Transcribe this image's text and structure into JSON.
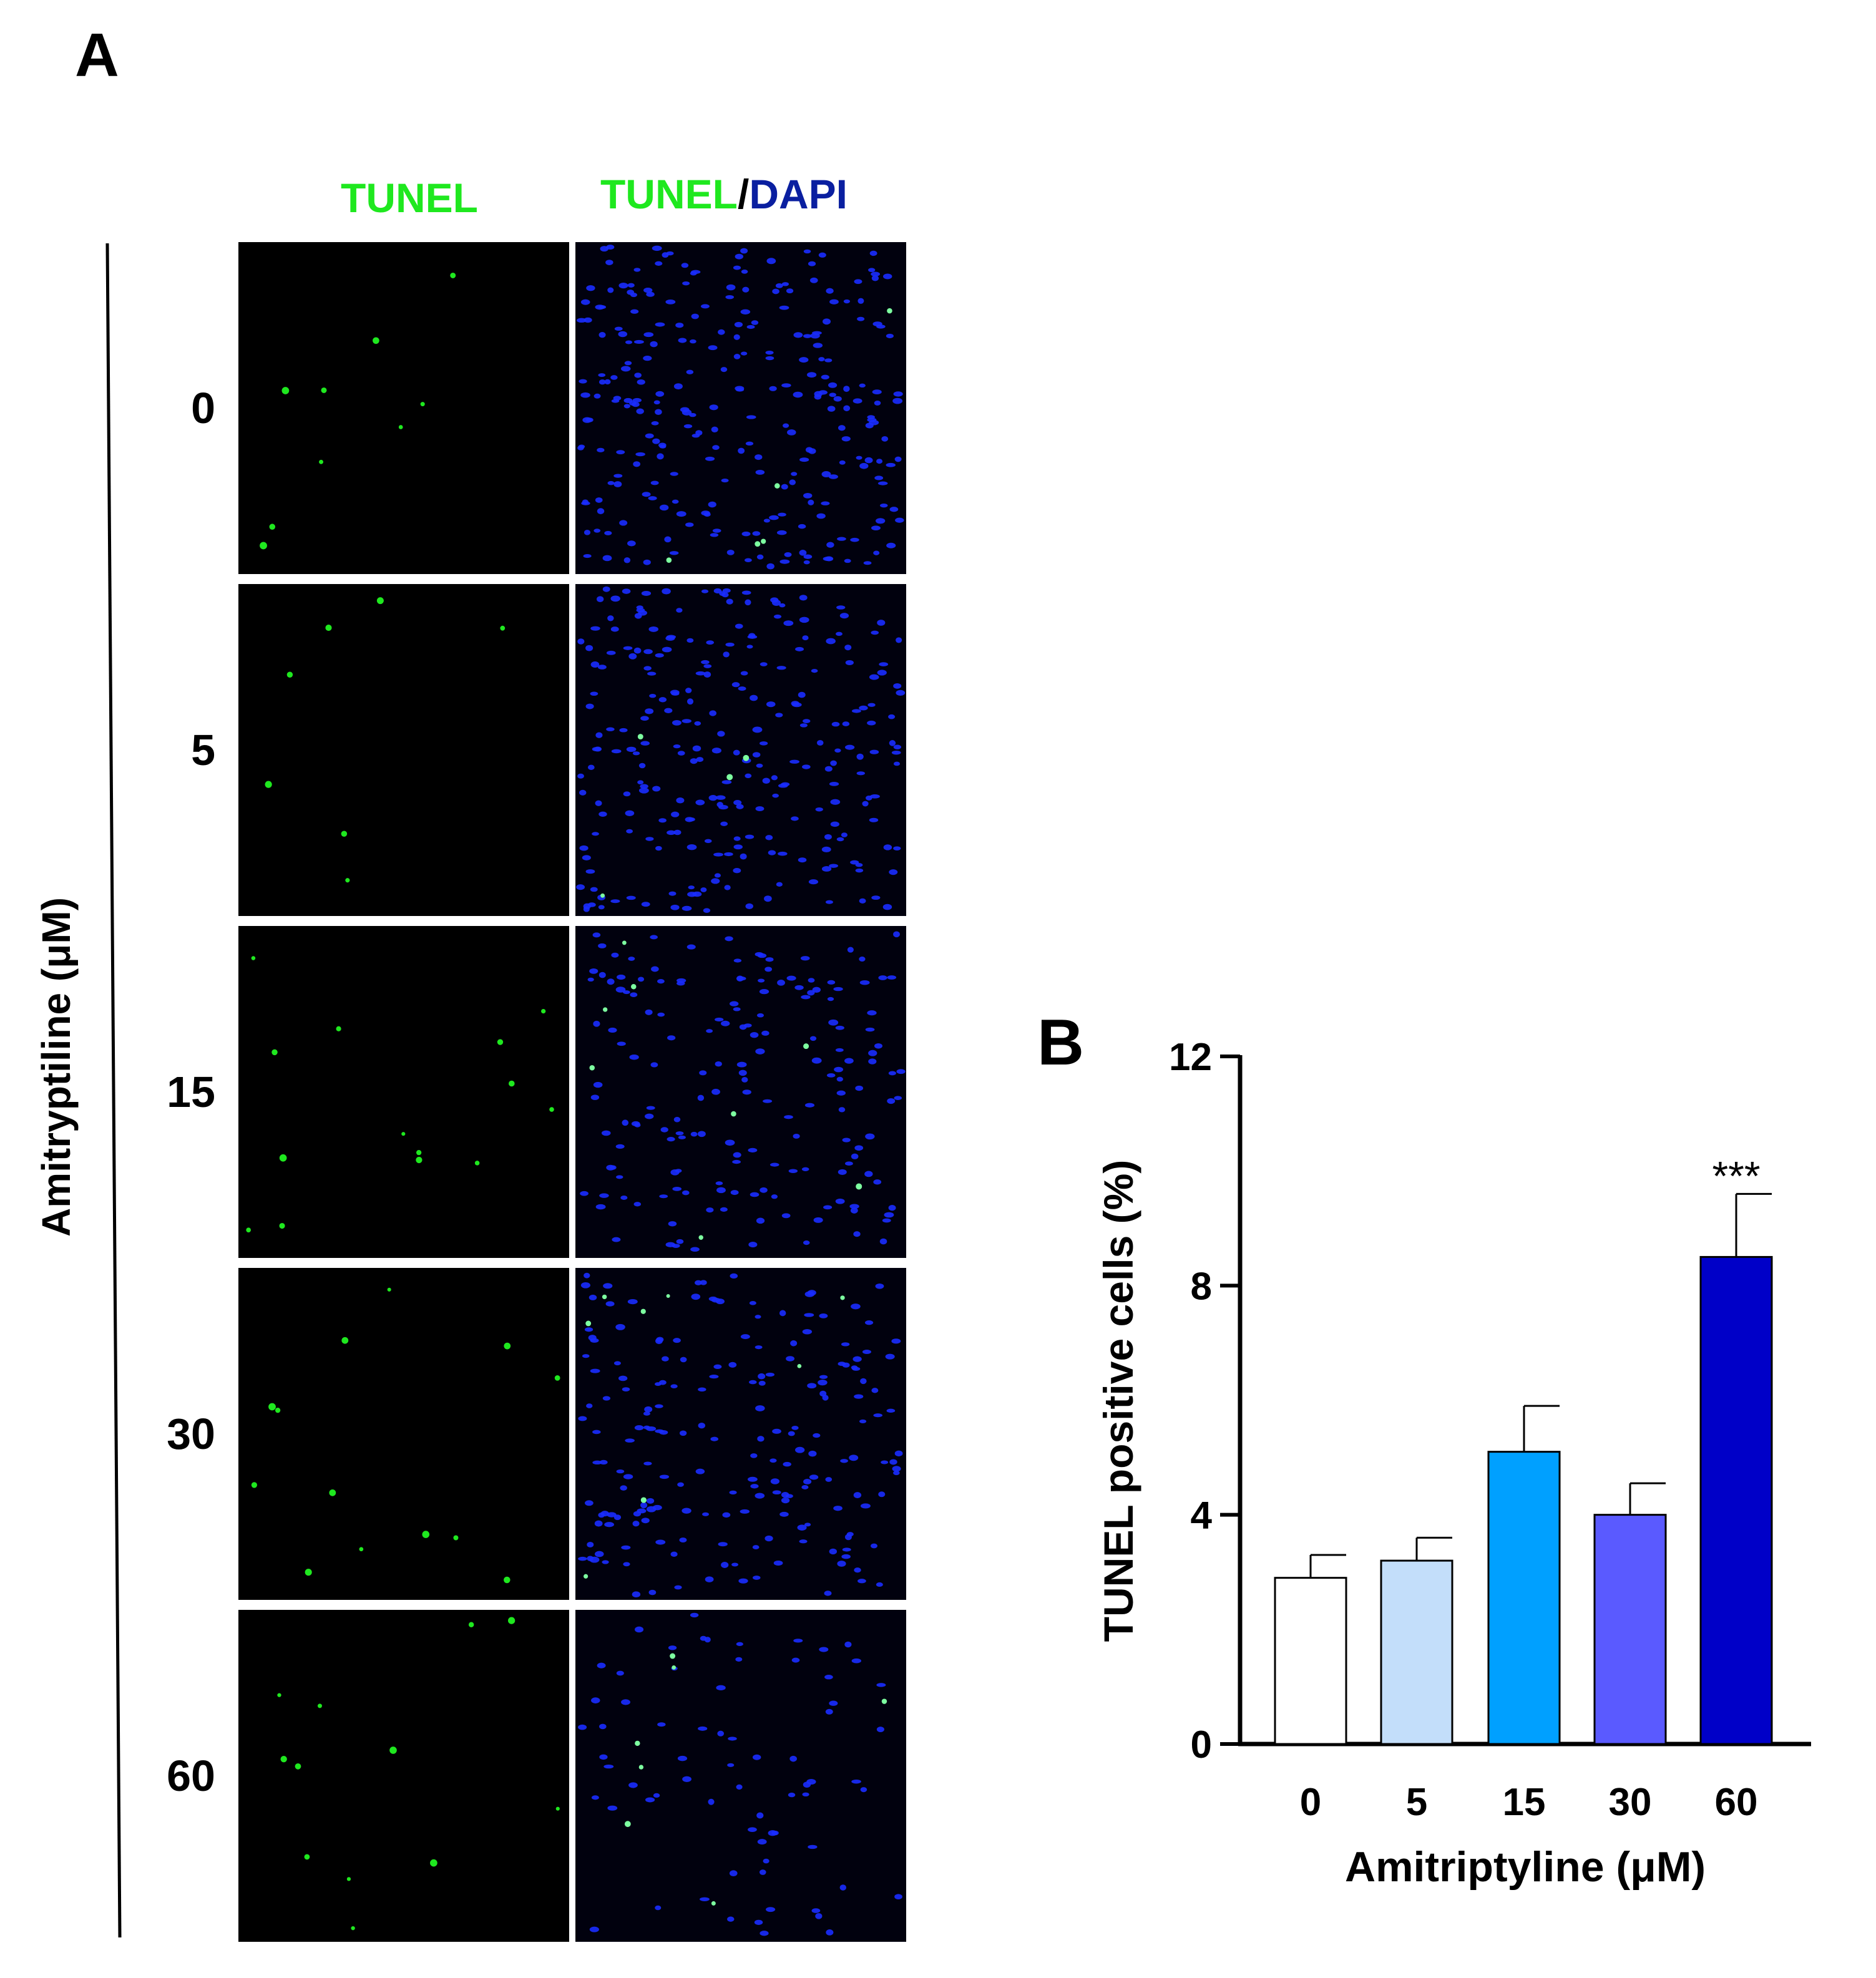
{
  "panel_a": {
    "label": "A",
    "col_headers": {
      "tunel": "TUNEL",
      "merge_green": "TUNEL",
      "merge_sep": "/",
      "merge_blue": "DAPI"
    },
    "side_label": "Amitryptiline (μM)",
    "rows": [
      "0",
      "5",
      "15",
      "30",
      "60"
    ],
    "colors": {
      "tunel": "#1fe81f",
      "dapi": "#0a1fa0",
      "nuclei": "#1a2cff",
      "separator": "#000000"
    }
  },
  "panel_b": {
    "label": "B"
  },
  "chart_data": {
    "type": "bar",
    "categories": [
      "0",
      "5",
      "15",
      "30",
      "60"
    ],
    "values": [
      2.9,
      3.2,
      5.1,
      4.0,
      8.5
    ],
    "errors": [
      0.4,
      0.4,
      0.8,
      0.55,
      1.1
    ],
    "annotations": [
      {
        "category": "60",
        "text": "***"
      }
    ],
    "bar_colors": [
      "#ffffff",
      "#c3defa",
      "#00a0ff",
      "#5a5aff",
      "#0000c8"
    ],
    "xlabel": "Amitriptyline (μM)",
    "ylabel": "TUNEL  positive  cells (%)",
    "ylim": [
      0,
      12
    ],
    "yticks": [
      "0",
      "4",
      "8",
      "12"
    ],
    "grid": false
  }
}
